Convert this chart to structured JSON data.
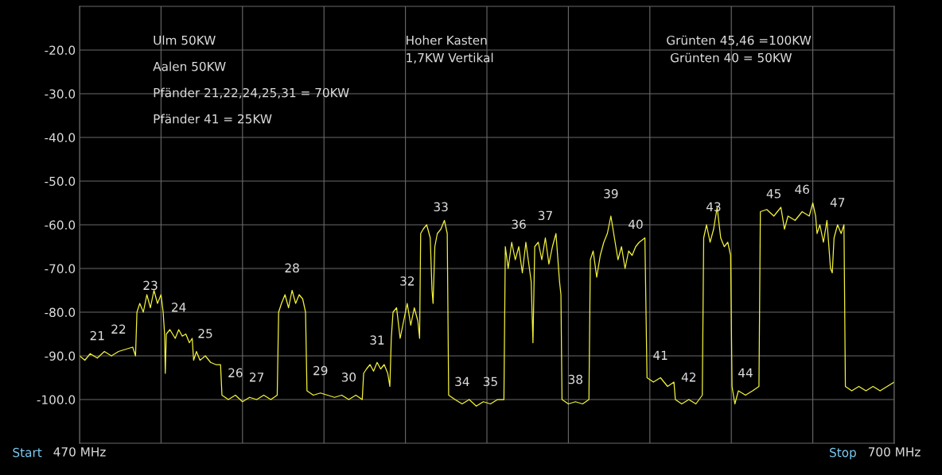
{
  "chart_data": {
    "type": "line",
    "xlim": [
      470,
      700
    ],
    "ylim": [
      -110,
      -10
    ],
    "xticks": [
      {
        "value": 470,
        "label": "470 MHz"
      },
      {
        "value": 493,
        "label": null
      },
      {
        "value": 516,
        "label": null
      },
      {
        "value": 539,
        "label": null
      },
      {
        "value": 562,
        "label": null
      },
      {
        "value": 585,
        "label": null
      },
      {
        "value": 608,
        "label": null
      },
      {
        "value": 631,
        "label": null
      },
      {
        "value": 654,
        "label": null
      },
      {
        "value": 677,
        "label": null
      },
      {
        "value": 700,
        "label": "700 MHz"
      }
    ],
    "yticks": [
      {
        "value": -20,
        "label": "-20.0"
      },
      {
        "value": -30,
        "label": "-30.0"
      },
      {
        "value": -40,
        "label": "-40.0"
      },
      {
        "value": -50,
        "label": "-50.0"
      },
      {
        "value": -60,
        "label": "-60.0"
      },
      {
        "value": -70,
        "label": "-70.0"
      },
      {
        "value": -80,
        "label": "-80.0"
      },
      {
        "value": -90,
        "label": "-90.0"
      },
      {
        "value": -100,
        "label": "-100.0"
      }
    ],
    "grid": true,
    "series": [
      {
        "color": "#f2f23a",
        "x": [
          470,
          471.5,
          473,
          475,
          477,
          479,
          481,
          483,
          485,
          485.8,
          486.2,
          487,
          488,
          489,
          490,
          491,
          492,
          493,
          493.6,
          494,
          494.2,
          494.5,
          495.5,
          497,
          498,
          499,
          500,
          501,
          501.8,
          502.2,
          503,
          504,
          505.5,
          507,
          508.5,
          509.8,
          510.2,
          512,
          514,
          516,
          518,
          520,
          522,
          524,
          525.8,
          526.2,
          527,
          528,
          529,
          530,
          531,
          532,
          533,
          533.8,
          534.2,
          536,
          538,
          540,
          542,
          544,
          546,
          548,
          549.8,
          550.2,
          551,
          552,
          553,
          554,
          555,
          556,
          557,
          557.6,
          558,
          558.5,
          559.5,
          560.5,
          561.5,
          562.5,
          563.5,
          564.5,
          565.5,
          566,
          566.3,
          567,
          568,
          569,
          569.5,
          569.8,
          570.3,
          571,
          572,
          573,
          573.8,
          574.2,
          576,
          578,
          580,
          582,
          584,
          586,
          588,
          589.8,
          590.2,
          591,
          592,
          593,
          594,
          595,
          596,
          597.5,
          598,
          598.5,
          599.5,
          600.5,
          601.5,
          602.5,
          603.5,
          604.5,
          605.5,
          605.9,
          606.2,
          608,
          610,
          612,
          613.8,
          614.2,
          615,
          616,
          617,
          618,
          619,
          620,
          621,
          622,
          623,
          624,
          625,
          626,
          627,
          628,
          629.6,
          630.2,
          632,
          634,
          636,
          637.8,
          638.2,
          640,
          642,
          644,
          645.8,
          646.2,
          647,
          648,
          649,
          650,
          651,
          652,
          653,
          653.8,
          654.2,
          655,
          656,
          658,
          660,
          661.8,
          662.2,
          664,
          666,
          668,
          669,
          670,
          672,
          674,
          676,
          677,
          677.8,
          678.2,
          679,
          680,
          681,
          682,
          682.5,
          683,
          684,
          685,
          685.8,
          686.2,
          688,
          690,
          692,
          694,
          696,
          698,
          700
        ],
        "values": [
          -90,
          -91,
          -89.5,
          -90.5,
          -89,
          -90,
          -89,
          -88.5,
          -88,
          -90,
          -80,
          -78,
          -80,
          -76,
          -79,
          -75,
          -78,
          -76,
          -80,
          -85,
          -94,
          -85,
          -84,
          -86,
          -84,
          -85.5,
          -85,
          -87,
          -86,
          -91,
          -89,
          -91,
          -90,
          -91.5,
          -92,
          -92,
          -99,
          -100,
          -99,
          -100.5,
          -99.5,
          -100,
          -99,
          -100,
          -99,
          -80,
          -78,
          -76,
          -79,
          -75,
          -78,
          -76,
          -77,
          -80,
          -98,
          -99,
          -98.5,
          -99,
          -99.5,
          -99,
          -100,
          -99,
          -100,
          -94,
          -93,
          -92,
          -93.5,
          -91.5,
          -93,
          -92,
          -94,
          -97,
          -86,
          -80,
          -79,
          -86,
          -82,
          -78,
          -83,
          -79,
          -82,
          -86,
          -62,
          -61,
          -60,
          -63,
          -75,
          -78,
          -65,
          -62,
          -61,
          -59,
          -62,
          -99,
          -100,
          -101,
          -100,
          -101.5,
          -100.5,
          -101,
          -100,
          -100,
          -65,
          -70,
          -64,
          -68,
          -65,
          -71,
          -64,
          -73,
          -87,
          -65,
          -64,
          -68,
          -63,
          -69,
          -65,
          -62,
          -73,
          -76,
          -100,
          -101,
          -100.5,
          -101,
          -100,
          -68,
          -66,
          -72,
          -67,
          -64,
          -62,
          -58,
          -63,
          -68,
          -65,
          -70,
          -66,
          -67,
          -65,
          -64,
          -63,
          -95,
          -96,
          -95,
          -97,
          -96,
          -100,
          -101,
          -100,
          -101,
          -99,
          -63,
          -60,
          -64,
          -61,
          -56,
          -63,
          -65,
          -64,
          -67,
          -97,
          -101,
          -98,
          -99,
          -98,
          -97,
          -57,
          -56.5,
          -58,
          -56,
          -61,
          -58,
          -59,
          -57,
          -58,
          -55,
          -58,
          -62,
          -60,
          -64,
          -59,
          -70,
          -71,
          -63,
          -60,
          -62,
          -60,
          -97,
          -98,
          -97,
          -98,
          -97,
          -98,
          -97,
          -96
        ]
      }
    ],
    "annotations": [
      {
        "text": "21",
        "x": 475,
        "y": -90.5
      },
      {
        "text": "22",
        "x": 481,
        "y": -89
      },
      {
        "text": "23",
        "x": 490,
        "y": -79
      },
      {
        "text": "24",
        "x": 498,
        "y": -84
      },
      {
        "text": "25",
        "x": 505.5,
        "y": -90
      },
      {
        "text": "26",
        "x": 514,
        "y": -99
      },
      {
        "text": "27",
        "x": 520,
        "y": -100
      },
      {
        "text": "28",
        "x": 530,
        "y": -75
      },
      {
        "text": "29",
        "x": 538,
        "y": -98.5
      },
      {
        "text": "30",
        "x": 546,
        "y": -100
      },
      {
        "text": "31",
        "x": 554,
        "y": -91.5
      },
      {
        "text": "32",
        "x": 562.5,
        "y": -78
      },
      {
        "text": "33",
        "x": 572,
        "y": -61
      },
      {
        "text": "34",
        "x": 578,
        "y": -101
      },
      {
        "text": "35",
        "x": 586,
        "y": -101
      },
      {
        "text": "36",
        "x": 594,
        "y": -65
      },
      {
        "text": "37",
        "x": 601.5,
        "y": -63
      },
      {
        "text": "38",
        "x": 610,
        "y": -100.5
      },
      {
        "text": "39",
        "x": 620,
        "y": -58
      },
      {
        "text": "40",
        "x": 627,
        "y": -65
      },
      {
        "text": "41",
        "x": 634,
        "y": -95
      },
      {
        "text": "42",
        "x": 642,
        "y": -100
      },
      {
        "text": "43",
        "x": 649,
        "y": -61
      },
      {
        "text": "44",
        "x": 658,
        "y": -99
      },
      {
        "text": "45",
        "x": 666,
        "y": -58
      },
      {
        "text": "46",
        "x": 674,
        "y": -57
      },
      {
        "text": "47",
        "x": 684,
        "y": -60
      },
      "Ulm 50KW",
      "Aalen 50KW",
      "Pfänder 21,22,24,25,31 = 70KW",
      "Pfänder 41 = 25KW",
      "Hoher Kasten",
      "1,7KW Vertikal",
      "Grünten 45,46 =100KW",
      " Grünten 40 = 50KW",
      "Start",
      "Stop"
    ]
  }
}
